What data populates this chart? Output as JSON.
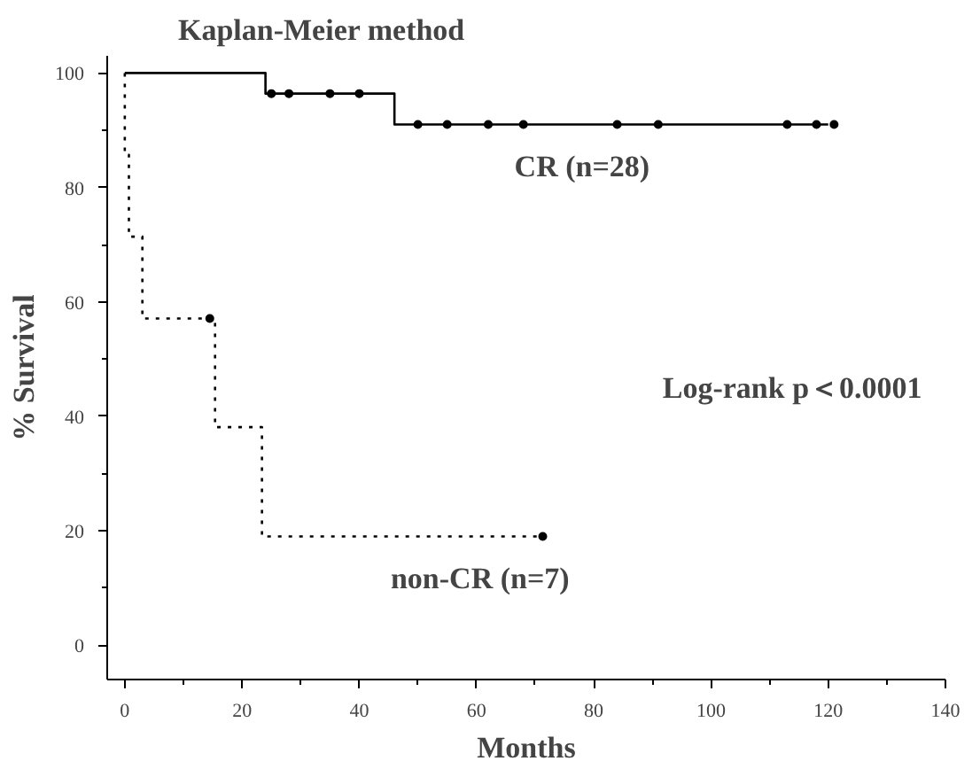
{
  "chart_data": {
    "type": "step",
    "title": "Kaplan-Meier method",
    "xlabel": "Months",
    "ylabel": "% Survival",
    "series": [
      {
        "name": "CR (n=28)",
        "color": "#000000",
        "line_style": "solid",
        "x": [
          0,
          24,
          46,
          120
        ],
        "values": [
          100,
          96.4,
          91,
          91
        ]
      },
      {
        "name": "non-CR (n=7)",
        "color": "#000000",
        "line_style": "dotted",
        "x": [
          0,
          0,
          0.7,
          3,
          15.4,
          23.4,
          71.3
        ],
        "values": [
          100,
          85.7,
          71.4,
          57.1,
          38.1,
          19,
          19
        ]
      },
      {
        "type": "scatter",
        "marker": "circle",
        "color": "#000000",
        "x": [
          25,
          28,
          35,
          40,
          50,
          55,
          62,
          68,
          84,
          91,
          113,
          118,
          121
        ],
        "values": [
          96.4,
          96.4,
          96.4,
          96.4,
          91,
          91,
          91,
          91,
          91,
          91,
          91,
          91,
          91
        ]
      },
      {
        "type": "scatter",
        "marker": "circle",
        "color": "#000000",
        "x": [
          14.5,
          71.3
        ],
        "values": [
          57.1,
          19
        ]
      }
    ],
    "annotations": [
      "Log-rank p＜0.0001"
    ],
    "xlim": [
      -3,
      140
    ],
    "ylim": [
      -6,
      103
    ],
    "xticks": [
      0,
      {
        "value": 10,
        "label": null
      },
      20,
      {
        "value": 30,
        "label": null
      },
      40,
      {
        "value": 50,
        "label": null
      },
      60,
      {
        "value": 70,
        "label": null
      },
      80,
      {
        "value": 90,
        "label": null
      },
      100,
      {
        "value": 110,
        "label": null
      },
      120,
      {
        "value": 130,
        "label": null
      },
      140
    ],
    "yticks": [
      0,
      {
        "value": 10,
        "label": null
      },
      20,
      {
        "value": 30,
        "label": null
      },
      40,
      {
        "value": 50,
        "label": null
      },
      60,
      {
        "value": 70,
        "label": null
      },
      80,
      {
        "value": 90,
        "label": null
      },
      100
    ],
    "grid": false
  }
}
